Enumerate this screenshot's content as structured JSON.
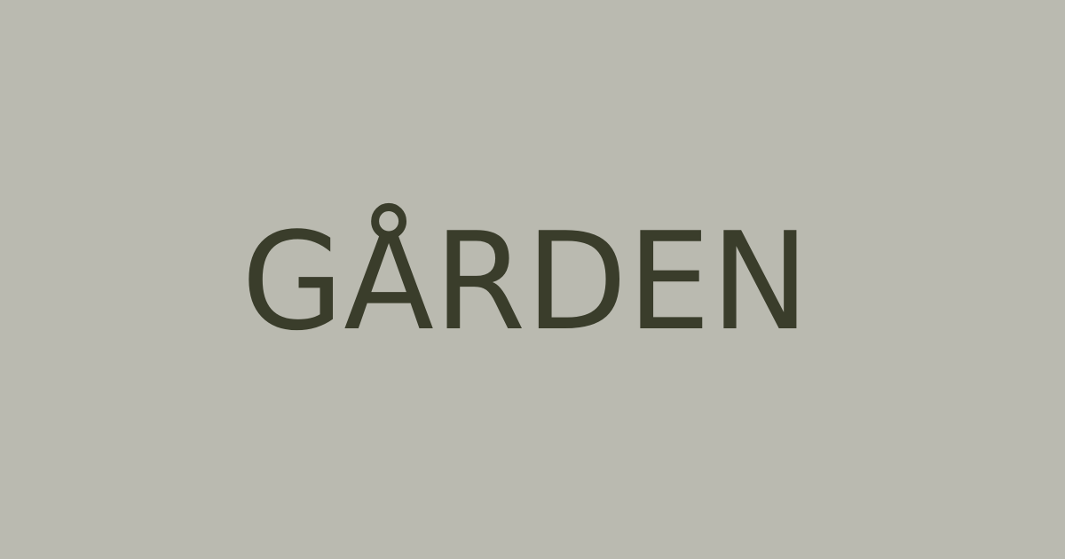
{
  "logo": {
    "text": "GÅRDEN"
  }
}
